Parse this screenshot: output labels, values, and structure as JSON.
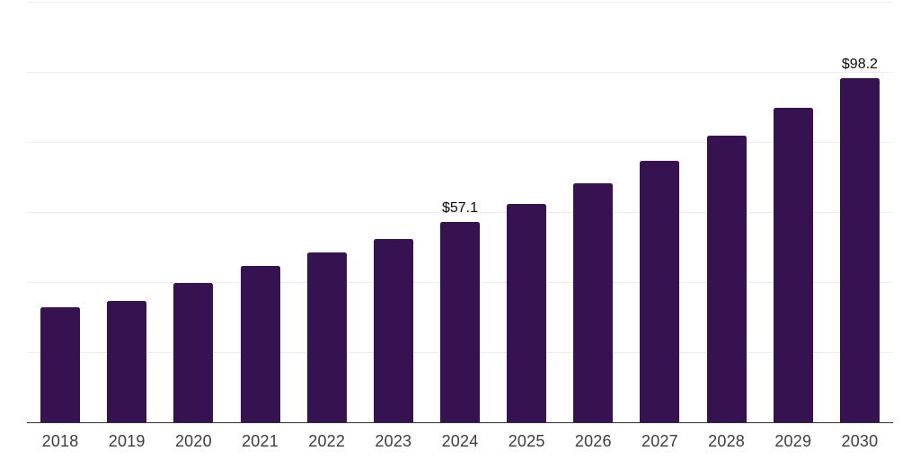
{
  "chart_data": {
    "type": "bar",
    "title": "",
    "xlabel": "",
    "ylabel": "",
    "categories": [
      "2018",
      "2019",
      "2020",
      "2021",
      "2022",
      "2023",
      "2024",
      "2025",
      "2026",
      "2027",
      "2028",
      "2029",
      "2030"
    ],
    "values": [
      32.7,
      34.7,
      39.8,
      44.7,
      48.5,
      52.4,
      57.1,
      62.3,
      68.3,
      74.7,
      81.9,
      89.8,
      98.2
    ],
    "data_labels": {
      "2024": "$57.1",
      "2030": "$98.2"
    },
    "ylim": [
      0,
      120
    ],
    "gridline_values": [
      20,
      40,
      60,
      80,
      100,
      120
    ],
    "grid": true,
    "legend": "none",
    "y_tick_labels_visible": false,
    "colors": {
      "bar": "#361250",
      "gridline": "#ededed",
      "axis_line": "#333333",
      "x_tick_label": "#3d3d3d",
      "data_label": "#0a0a0a",
      "background": "#ffffff"
    }
  }
}
